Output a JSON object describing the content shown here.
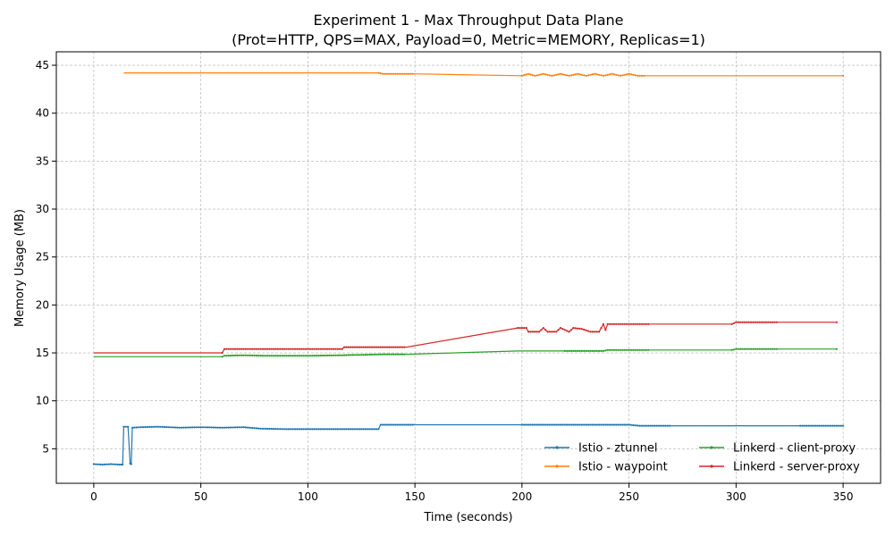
{
  "chart_data": {
    "type": "line",
    "title": "Experiment 1 - Max Throughput Data Plane",
    "subtitle": "(Prot=HTTP, QPS=MAX, Payload=0, Metric=MEMORY, Replicas=1)",
    "xlabel": "Time (seconds)",
    "ylabel": "Memory Usage (MB)",
    "xlim": [
      -17.5,
      367.5
    ],
    "ylim": [
      1.4,
      46.4
    ],
    "xticks": [
      0,
      50,
      100,
      150,
      200,
      250,
      300,
      350
    ],
    "yticks": [
      5,
      10,
      15,
      20,
      25,
      30,
      35,
      40,
      45
    ],
    "grid": true,
    "legend_position": "lower-right",
    "series": [
      {
        "name": "Istio - ztunnel",
        "color": "#1f77b4",
        "points": [
          [
            0,
            3.4
          ],
          [
            4,
            3.35
          ],
          [
            8,
            3.4
          ],
          [
            12,
            3.35
          ],
          [
            13.5,
            3.35
          ],
          [
            14,
            7.3
          ],
          [
            16,
            7.3
          ],
          [
            17,
            3.45
          ],
          [
            17.5,
            3.4
          ],
          [
            18,
            7.2
          ],
          [
            22,
            7.25
          ],
          [
            30,
            7.3
          ],
          [
            40,
            7.2
          ],
          [
            50,
            7.25
          ],
          [
            60,
            7.2
          ],
          [
            70,
            7.25
          ],
          [
            78,
            7.1
          ],
          [
            90,
            7.05
          ],
          [
            100,
            7.05
          ],
          [
            110,
            7.05
          ],
          [
            120,
            7.05
          ],
          [
            133,
            7.05
          ],
          [
            134,
            7.5
          ],
          [
            140,
            7.5
          ],
          [
            150,
            7.5
          ],
          [
            200,
            7.5
          ],
          [
            210,
            7.5
          ],
          [
            230,
            7.5
          ],
          [
            250,
            7.5
          ],
          [
            255,
            7.4
          ],
          [
            270,
            7.4
          ],
          [
            300,
            7.4
          ],
          [
            330,
            7.4
          ],
          [
            350,
            7.4
          ]
        ]
      },
      {
        "name": "Istio - waypoint",
        "color": "#ff7f0e",
        "points": [
          [
            14,
            44.2
          ],
          [
            50,
            44.2
          ],
          [
            100,
            44.2
          ],
          [
            133,
            44.2
          ],
          [
            135,
            44.1
          ],
          [
            150,
            44.1
          ],
          [
            200,
            43.9
          ],
          [
            203,
            44.1
          ],
          [
            206,
            43.9
          ],
          [
            210,
            44.1
          ],
          [
            214,
            43.9
          ],
          [
            218,
            44.1
          ],
          [
            222,
            43.9
          ],
          [
            226,
            44.1
          ],
          [
            230,
            43.9
          ],
          [
            234,
            44.1
          ],
          [
            238,
            43.9
          ],
          [
            242,
            44.1
          ],
          [
            246,
            43.9
          ],
          [
            250,
            44.1
          ],
          [
            254,
            43.9
          ],
          [
            258,
            43.9
          ],
          [
            300,
            43.9
          ],
          [
            350,
            43.9
          ]
        ]
      },
      {
        "name": "Linkerd - client-proxy",
        "color": "#2ca02c",
        "points": [
          [
            0,
            14.6
          ],
          [
            30,
            14.6
          ],
          [
            60,
            14.6
          ],
          [
            61,
            14.7
          ],
          [
            70,
            14.75
          ],
          [
            80,
            14.7
          ],
          [
            100,
            14.7
          ],
          [
            115,
            14.75
          ],
          [
            125,
            14.8
          ],
          [
            135,
            14.85
          ],
          [
            146,
            14.85
          ],
          [
            198,
            15.2
          ],
          [
            220,
            15.2
          ],
          [
            238,
            15.2
          ],
          [
            240,
            15.3
          ],
          [
            260,
            15.3
          ],
          [
            298,
            15.3
          ],
          [
            300,
            15.4
          ],
          [
            320,
            15.4
          ],
          [
            347,
            15.4
          ]
        ]
      },
      {
        "name": "Linkerd - server-proxy",
        "color": "#d62728",
        "points": [
          [
            0,
            15.0
          ],
          [
            30,
            15.0
          ],
          [
            60,
            15.0
          ],
          [
            61,
            15.4
          ],
          [
            80,
            15.4
          ],
          [
            100,
            15.4
          ],
          [
            116,
            15.4
          ],
          [
            117,
            15.6
          ],
          [
            130,
            15.6
          ],
          [
            146,
            15.6
          ],
          [
            198,
            17.6
          ],
          [
            202,
            17.6
          ],
          [
            203,
            17.2
          ],
          [
            208,
            17.2
          ],
          [
            210,
            17.6
          ],
          [
            212,
            17.2
          ],
          [
            216,
            17.2
          ],
          [
            218,
            17.6
          ],
          [
            222,
            17.2
          ],
          [
            224,
            17.6
          ],
          [
            228,
            17.5
          ],
          [
            232,
            17.2
          ],
          [
            236,
            17.2
          ],
          [
            238,
            18.0
          ],
          [
            239,
            17.4
          ],
          [
            240,
            18.0
          ],
          [
            242,
            18.0
          ],
          [
            260,
            18.0
          ],
          [
            298,
            18.0
          ],
          [
            300,
            18.2
          ],
          [
            320,
            18.2
          ],
          [
            347,
            18.2
          ]
        ]
      }
    ]
  }
}
